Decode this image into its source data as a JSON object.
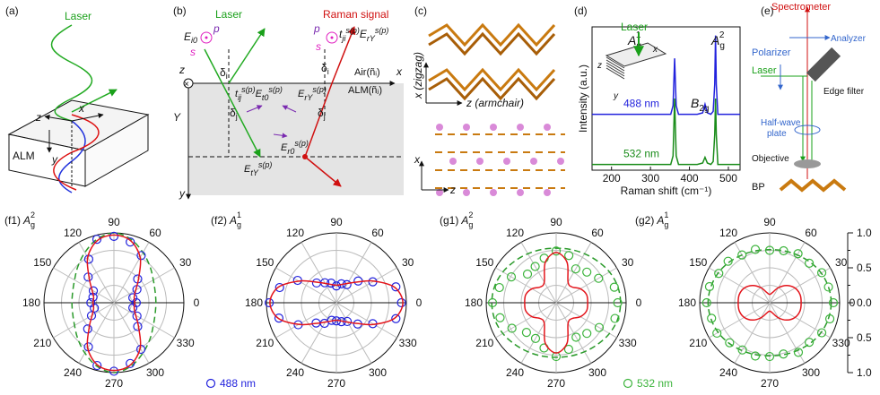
{
  "chart_data": [
    {
      "type": "spectrum",
      "panel": "(d)",
      "xlabel": "Raman shift (cm⁻¹)",
      "ylabel": "Intensity (a.u.)",
      "xlim": [
        150,
        530
      ],
      "xticks": [
        200,
        300,
        400,
        500
      ],
      "ylim": [
        0,
        1
      ],
      "x": [
        150,
        300,
        352,
        358,
        362,
        366,
        372,
        420,
        434,
        440,
        446,
        455,
        461,
        465,
        467,
        469,
        473,
        530
      ],
      "series": [
        {
          "name": "488 nm",
          "color": "#2222dd",
          "values": [
            0.39,
            0.39,
            0.39,
            0.45,
            0.78,
            0.45,
            0.39,
            0.39,
            0.4,
            0.46,
            0.4,
            0.39,
            0.41,
            0.6,
            0.94,
            0.6,
            0.39,
            0.39
          ]
        },
        {
          "name": "532 nm",
          "color": "#1a8c1a",
          "values": [
            0.04,
            0.04,
            0.04,
            0.1,
            0.5,
            0.1,
            0.04,
            0.04,
            0.05,
            0.09,
            0.05,
            0.04,
            0.06,
            0.25,
            0.5,
            0.25,
            0.04,
            0.04
          ]
        }
      ],
      "peaks": [
        {
          "main": "A",
          "sub": "g",
          "sup": "1"
        },
        {
          "main": "B",
          "sub": "2g"
        },
        {
          "main": "A",
          "sub": "g",
          "sup": "2"
        }
      ],
      "laser": "Laser",
      "axes": [
        "x",
        "y",
        "z"
      ]
    },
    {
      "type": "polar",
      "panel": "(f1)",
      "title": {
        "main": "A",
        "sub": "g",
        "sup": "2"
      },
      "theta": [
        0,
        15,
        30,
        45,
        60,
        75,
        90,
        105,
        120,
        135,
        150,
        165,
        180,
        195,
        210,
        225,
        240,
        255,
        270,
        285,
        300,
        315,
        330,
        345
      ],
      "angle_ticks": [
        0,
        30,
        60,
        90,
        120,
        150,
        180,
        210,
        240,
        270,
        300,
        330
      ],
      "rlim": [
        0,
        1
      ],
      "rticks": [
        0.25,
        0.5,
        0.75,
        1
      ],
      "series": [
        {
          "style": "dashed",
          "color": "#2a9a2a",
          "values": [
            0.6,
            0.61,
            0.65,
            0.73,
            0.83,
            0.94,
            1.0,
            0.94,
            0.83,
            0.73,
            0.65,
            0.61,
            0.6,
            0.61,
            0.65,
            0.73,
            0.83,
            0.94,
            1.0,
            0.94,
            0.83,
            0.73,
            0.65,
            0.61
          ]
        },
        {
          "style": "circles",
          "color": "#2222dd",
          "values": [
            0.32,
            0.28,
            0.38,
            0.48,
            0.78,
            0.9,
            0.95,
            0.94,
            0.72,
            0.52,
            0.34,
            0.31,
            0.33,
            0.29,
            0.37,
            0.53,
            0.73,
            0.93,
            0.98,
            0.9,
            0.77,
            0.48,
            0.38,
            0.28
          ]
        },
        {
          "style": "line",
          "color": "#e3141b",
          "values": [
            0.3,
            0.3,
            0.36,
            0.5,
            0.75,
            0.92,
            0.97,
            0.92,
            0.75,
            0.5,
            0.36,
            0.3,
            0.3,
            0.3,
            0.36,
            0.5,
            0.75,
            0.92,
            0.97,
            0.92,
            0.75,
            0.5,
            0.36,
            0.3
          ]
        }
      ]
    },
    {
      "type": "polar",
      "panel": "(f2)",
      "title": {
        "main": "A",
        "sub": "g",
        "sup": "1"
      },
      "theta": [
        0,
        15,
        30,
        45,
        60,
        75,
        90,
        105,
        120,
        135,
        150,
        165,
        180,
        195,
        210,
        225,
        240,
        255,
        270,
        285,
        300,
        315,
        330,
        345
      ],
      "angle_ticks": [
        0,
        30,
        60,
        90,
        120,
        150,
        180,
        210,
        240,
        270,
        300,
        330
      ],
      "rlim": [
        0,
        1
      ],
      "rticks": [
        0.25,
        0.5,
        0.75,
        1
      ],
      "series": [
        {
          "style": "circles",
          "name": "488 nm",
          "color": "#2222dd",
          "values": [
            0.93,
            0.88,
            0.6,
            0.44,
            0.3,
            0.28,
            0.24,
            0.29,
            0.33,
            0.4,
            0.64,
            0.84,
            0.96,
            0.85,
            0.63,
            0.41,
            0.34,
            0.26,
            0.26,
            0.28,
            0.31,
            0.43,
            0.6,
            0.88
          ]
        },
        {
          "style": "line",
          "color": "#e3141b",
          "values": [
            0.95,
            0.86,
            0.62,
            0.42,
            0.32,
            0.27,
            0.25,
            0.27,
            0.32,
            0.42,
            0.62,
            0.86,
            0.95,
            0.86,
            0.62,
            0.42,
            0.32,
            0.27,
            0.25,
            0.27,
            0.32,
            0.42,
            0.62,
            0.86
          ]
        }
      ]
    },
    {
      "type": "polar",
      "panel": "(g1)",
      "title": {
        "main": "A",
        "sub": "g",
        "sup": "2"
      },
      "theta": [
        0,
        15,
        30,
        45,
        60,
        75,
        90,
        105,
        120,
        135,
        150,
        165,
        180,
        195,
        210,
        225,
        240,
        255,
        270,
        285,
        300,
        315,
        330,
        345
      ],
      "angle_ticks": [
        0,
        30,
        60,
        90,
        120,
        150,
        180,
        210,
        240,
        270,
        300,
        330
      ],
      "rlim": [
        0,
        1
      ],
      "rticks": [
        0.25,
        0.5,
        0.75,
        1
      ],
      "series": [
        {
          "style": "dashed",
          "color": "#2a9a2a",
          "values": [
            0.92,
            0.91,
            0.88,
            0.84,
            0.81,
            0.79,
            0.78,
            0.79,
            0.81,
            0.84,
            0.88,
            0.91,
            0.92,
            0.91,
            0.88,
            0.84,
            0.81,
            0.79,
            0.78,
            0.79,
            0.81,
            0.84,
            0.88,
            0.91
          ]
        },
        {
          "style": "circles",
          "color": "#3cb43c",
          "values": [
            0.88,
            0.86,
            0.7,
            0.62,
            0.56,
            0.7,
            0.74,
            0.66,
            0.6,
            0.58,
            0.74,
            0.84,
            0.91,
            0.83,
            0.73,
            0.6,
            0.59,
            0.67,
            0.77,
            0.69,
            0.57,
            0.62,
            0.71,
            0.87
          ]
        },
        {
          "style": "line",
          "color": "#e3141b",
          "values": [
            0.45,
            0.45,
            0.4,
            0.32,
            0.34,
            0.6,
            0.72,
            0.6,
            0.34,
            0.32,
            0.4,
            0.45,
            0.45,
            0.45,
            0.4,
            0.32,
            0.34,
            0.6,
            0.72,
            0.6,
            0.34,
            0.32,
            0.4,
            0.45
          ]
        }
      ]
    },
    {
      "type": "polar",
      "panel": "(g2)",
      "title": {
        "main": "A",
        "sub": "g",
        "sup": "1"
      },
      "theta": [
        0,
        15,
        30,
        45,
        60,
        75,
        90,
        105,
        120,
        135,
        150,
        165,
        180,
        195,
        210,
        225,
        240,
        255,
        270,
        285,
        300,
        315,
        330,
        345
      ],
      "angle_ticks": [
        0,
        30,
        60,
        90,
        120,
        150,
        180,
        210,
        240,
        270,
        300,
        330
      ],
      "rlim": [
        0,
        1
      ],
      "rticks": [
        0.25,
        0.5,
        0.75,
        1
      ],
      "rscale_ticks": [
        {
          "value": 1,
          "label": "1.0"
        },
        {
          "value": 0.5,
          "label": "0.5"
        },
        {
          "value": 0,
          "label": "0.0"
        },
        {
          "value": 0.5,
          "label": "0.5"
        },
        {
          "value": 1,
          "label": "1.0"
        }
      ],
      "series": [
        {
          "style": "dashed",
          "color": "#2a9a2a",
          "values": [
            0.88,
            0.87,
            0.85,
            0.82,
            0.79,
            0.77,
            0.76,
            0.77,
            0.79,
            0.82,
            0.85,
            0.87,
            0.88,
            0.87,
            0.85,
            0.82,
            0.79,
            0.77,
            0.76,
            0.77,
            0.79,
            0.82,
            0.85,
            0.87
          ]
        },
        {
          "style": "circles",
          "name": "532 nm",
          "color": "#3cb43c",
          "values": [
            0.91,
            0.87,
            0.86,
            0.8,
            0.81,
            0.77,
            0.75,
            0.79,
            0.79,
            0.84,
            0.84,
            0.89,
            0.9,
            0.86,
            0.87,
            0.81,
            0.78,
            0.79,
            0.77,
            0.76,
            0.82,
            0.8,
            0.86,
            0.89
          ]
        },
        {
          "style": "line",
          "color": "#e3141b",
          "values": [
            0.45,
            0.45,
            0.42,
            0.35,
            0.25,
            0.15,
            0.12,
            0.15,
            0.25,
            0.35,
            0.42,
            0.45,
            0.45,
            0.45,
            0.42,
            0.35,
            0.25,
            0.15,
            0.12,
            0.15,
            0.25,
            0.35,
            0.42,
            0.45
          ]
        }
      ]
    }
  ],
  "panels": {
    "a": {
      "label": "(a)",
      "laser": "Laser",
      "medium": "ALM",
      "x": "x",
      "y": "y",
      "z": "z"
    },
    "b": {
      "label": "(b)",
      "laser": "Laser",
      "raman": "Raman signal",
      "s1": "s",
      "p1": "p",
      "s2": "s",
      "p2": "p",
      "ei0": {
        "main": "E",
        "sub": "i0"
      },
      "di": {
        "main": "δ",
        "sub": "i"
      },
      "dr": {
        "main": "δ",
        "sub": "i"
      },
      "dt": {
        "main": "δ",
        "sub": "j"
      },
      "dj": {
        "main": "δ",
        "sub": "j"
      },
      "tji": {
        "main": "t",
        "sub": "ji",
        "sup": "s(p)"
      },
      "erY": {
        "main": "E",
        "sub": "rY",
        "sup": "s(p)"
      },
      "tij": {
        "main": "t",
        "sub": "ij",
        "sup": "s(p)"
      },
      "et0": {
        "main": "E",
        "sub": "t0",
        "sup": "s(p)"
      },
      "erY2": {
        "main": "E",
        "sub": "rY",
        "sup": "s(p)"
      },
      "er0": {
        "main": "E",
        "sub": "r0",
        "sup": "s(p)"
      },
      "etY": {
        "main": "E",
        "sub": "tY",
        "sup": "s(p)"
      },
      "air": "Air(ñᵢ)",
      "alm": "ALM(ñⱼ)",
      "z": "z",
      "x": "x",
      "Y": "Y",
      "y": "y"
    },
    "c": {
      "label": "(c)",
      "zigzag": "x (zigzag)",
      "armchair": "z (armchair)",
      "x": "x",
      "z": "z"
    },
    "e": {
      "label": "(e)",
      "spectrometer": "Spectrometer",
      "analyzer": "Analyzer",
      "polarizer": "Polarizer",
      "laser": "Laser",
      "edge": "Edge filter",
      "halfwave": "Half-wave",
      "plate": "plate",
      "objective": "Objective",
      "bp": "BP"
    }
  }
}
